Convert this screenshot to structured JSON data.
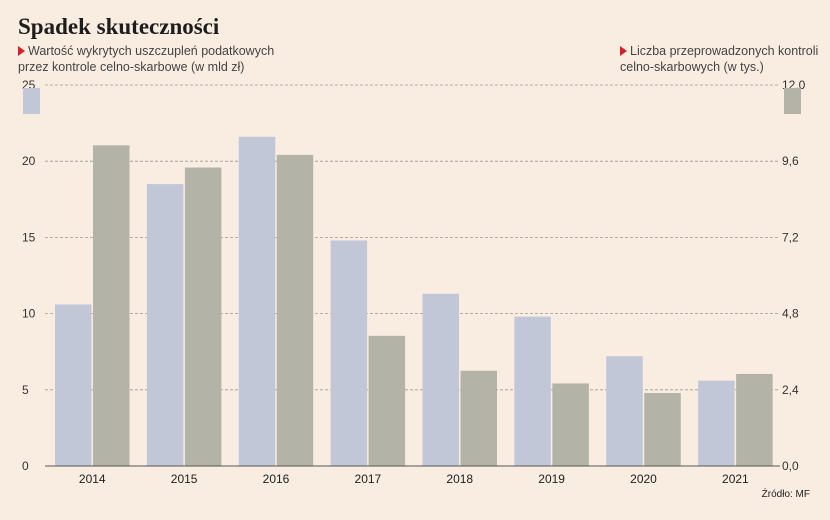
{
  "chart_data": {
    "type": "bar",
    "title": "Spadek skuteczności",
    "categories": [
      "2014",
      "2015",
      "2016",
      "2017",
      "2018",
      "2019",
      "2020",
      "2021"
    ],
    "series": [
      {
        "name": "Wartość wykrytych uszczupleń podatkowych przez kontrole celno-skarbowe (w mld zł)",
        "axis": "left",
        "color": "#c2c7d8",
        "values": [
          10.6,
          18.5,
          21.6,
          14.8,
          11.3,
          9.8,
          7.2,
          5.6
        ]
      },
      {
        "name": "Liczba przeprowadzonych kontroli celno-skarbowych (w tys.)",
        "axis": "right",
        "color": "#b3b3a8",
        "values": [
          10.1,
          9.4,
          9.8,
          4.1,
          3.0,
          2.6,
          2.3,
          2.9
        ]
      }
    ],
    "y_left": {
      "range": [
        0,
        25
      ],
      "ticks": [
        "0",
        "5",
        "10",
        "15",
        "20",
        "25"
      ]
    },
    "y_right": {
      "range": [
        0,
        12
      ],
      "ticks": [
        "0,0",
        "2,4",
        "4,8",
        "7,2",
        "9,6",
        "12,0"
      ]
    },
    "grid": true,
    "source": "Źródło: MF"
  }
}
